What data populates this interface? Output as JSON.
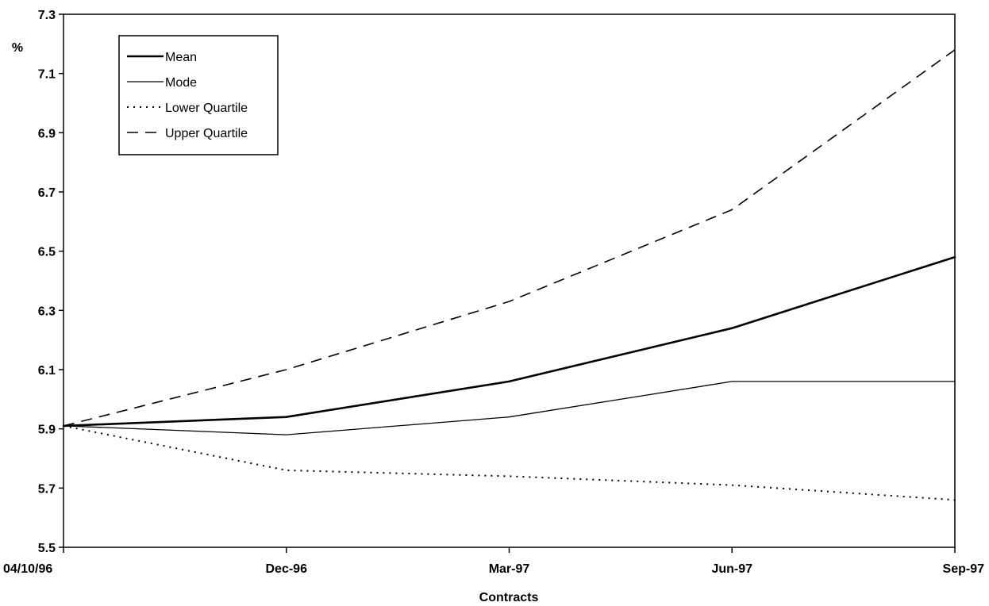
{
  "chart_data": {
    "type": "line",
    "title": "",
    "xlabel": "Contracts",
    "ylabel": "%",
    "categories": [
      "04/10/96",
      "Dec-96",
      "Mar-97",
      "Jun-97",
      "Sep-97"
    ],
    "ylim": [
      5.5,
      7.3
    ],
    "yticks": [
      "5.5",
      "5.7",
      "5.9",
      "6.1",
      "6.3",
      "6.5",
      "6.7",
      "6.9",
      "7.1",
      "7.3"
    ],
    "grid": false,
    "legend_position": "top-left",
    "series": [
      {
        "name": "Mean",
        "style": "solid-thick",
        "values": [
          5.91,
          5.94,
          6.06,
          6.24,
          6.48
        ]
      },
      {
        "name": "Mode",
        "style": "solid-thin",
        "values": [
          5.91,
          5.88,
          5.94,
          6.06,
          6.06
        ]
      },
      {
        "name": "Lower Quartile",
        "style": "dotted",
        "values": [
          5.91,
          5.76,
          5.74,
          5.71,
          5.66
        ]
      },
      {
        "name": "Upper Quartile",
        "style": "dashed",
        "values": [
          5.91,
          6.1,
          6.33,
          6.64,
          7.18
        ]
      }
    ],
    "line_color": "#000000"
  }
}
